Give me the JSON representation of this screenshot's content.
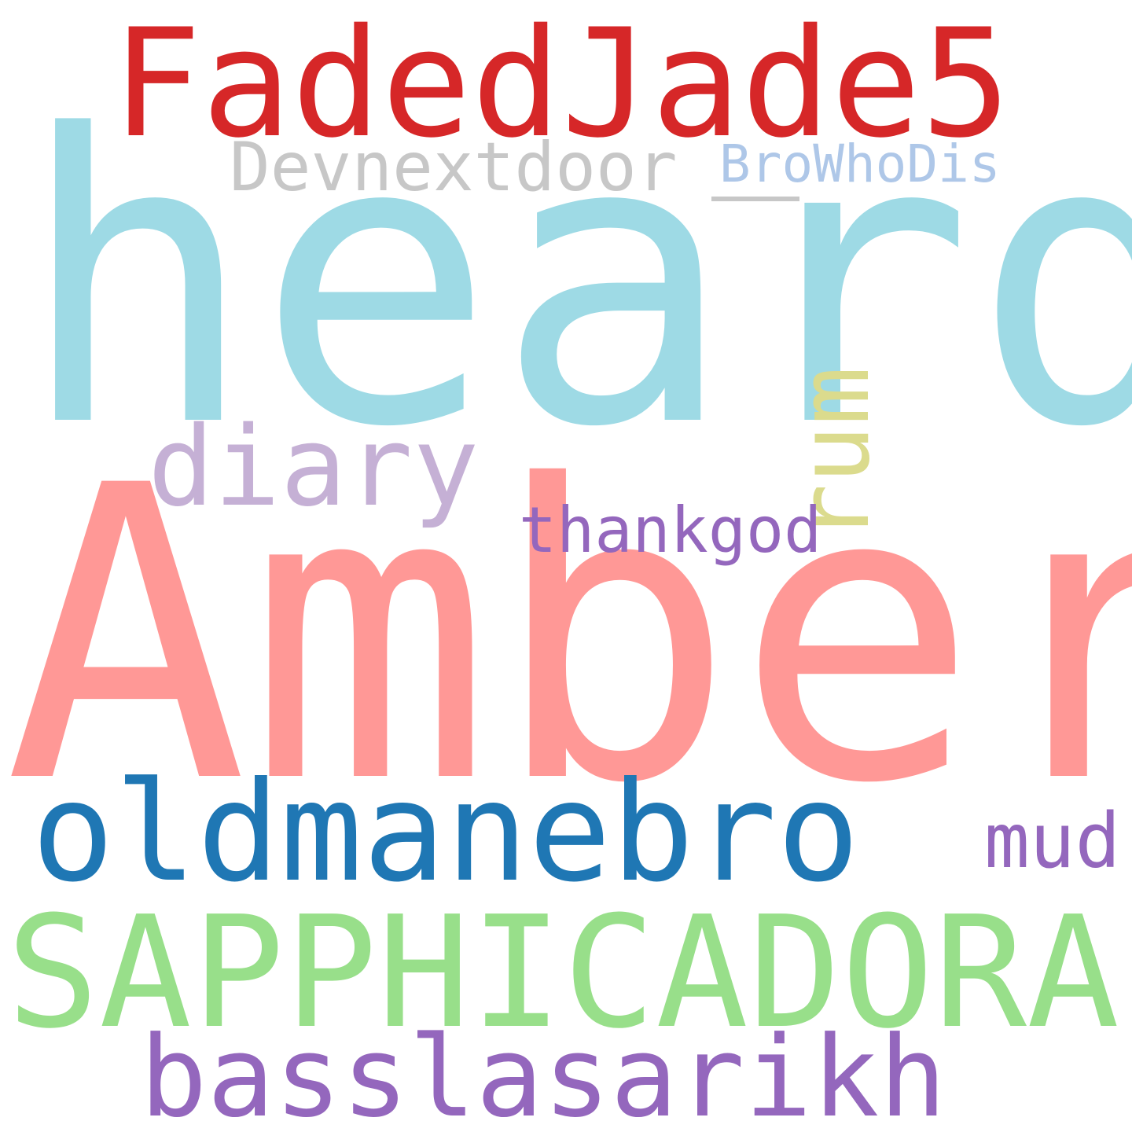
{
  "words": {
    "faded": {
      "text": "FadedJade5",
      "color": "#d62728"
    },
    "heard": {
      "text": "heard",
      "color": "#9edae5"
    },
    "devnext": {
      "text": "Devnextdoor",
      "color": "#c7c7c7"
    },
    "brow": {
      "text": "BroWhoDis",
      "color": "#aec7e8"
    },
    "rum": {
      "text": "rum",
      "color": "#dbdb8d"
    },
    "diary": {
      "text": "diary",
      "color": "#c5b0d5"
    },
    "thank": {
      "text": "thankgod",
      "color": "#9467bd"
    },
    "amber": {
      "text": "Amber",
      "color": "#ff9896"
    },
    "oldman": {
      "text": "oldmanebro",
      "color": "#1f77b4"
    },
    "mud": {
      "text": "mud",
      "color": "#9467bd"
    },
    "sapph": {
      "text": "SAPPHICADORA",
      "color": "#98df8a"
    },
    "bass": {
      "text": "basslasarikh",
      "color": "#9467bd"
    }
  }
}
